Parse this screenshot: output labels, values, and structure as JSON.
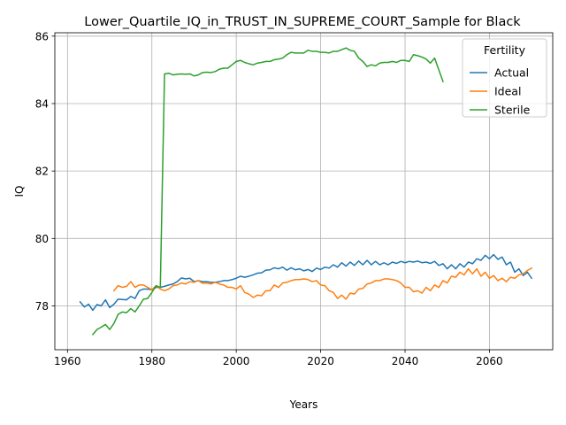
{
  "chart_data": {
    "type": "line",
    "title": "Lower_Quartile_IQ_in_TRUST_IN_SUPREME_COURT_Sample for Black",
    "xlabel": "Years",
    "ylabel": "IQ",
    "xlim": [
      1957,
      2075
    ],
    "ylim": [
      76.7,
      86.1
    ],
    "xticks": [
      1960,
      1980,
      2000,
      2020,
      2040,
      2060
    ],
    "yticks": [
      78,
      80,
      82,
      84,
      86
    ],
    "grid": true,
    "legend": {
      "title": "Fertility",
      "placement": "top-right"
    },
    "series": [
      {
        "name": "Actual",
        "color": "#1f77b4",
        "x": [
          1963,
          1964,
          1965,
          1966,
          1967,
          1968,
          1969,
          1970,
          1971,
          1972,
          1973,
          1974,
          1975,
          1976,
          1977,
          1978,
          1979,
          1980,
          1981,
          1982,
          1983,
          1984,
          1985,
          1986,
          1987,
          1988,
          1989,
          1990,
          1991,
          1992,
          1993,
          1994,
          1995,
          1996,
          1997,
          1998,
          1999,
          2000,
          2001,
          2002,
          2003,
          2004,
          2005,
          2006,
          2007,
          2008,
          2009,
          2010,
          2011,
          2012,
          2013,
          2014,
          2015,
          2016,
          2017,
          2018,
          2019,
          2020,
          2021,
          2022,
          2023,
          2024,
          2025,
          2026,
          2027,
          2028,
          2029,
          2030,
          2031,
          2032,
          2033,
          2034,
          2035,
          2036,
          2037,
          2038,
          2039,
          2040,
          2041,
          2042,
          2043,
          2044,
          2045,
          2046,
          2047,
          2048,
          2049,
          2050,
          2051,
          2052,
          2053,
          2054,
          2055,
          2056,
          2057,
          2058,
          2059,
          2060,
          2061,
          2062,
          2063,
          2064,
          2065,
          2066,
          2067,
          2068,
          2069,
          2070
        ],
        "values": [
          78.12,
          77.97,
          78.05,
          77.87,
          78.04,
          78.0,
          78.18,
          77.95,
          78.05,
          78.2,
          78.19,
          78.18,
          78.28,
          78.22,
          78.45,
          78.5,
          78.5,
          78.48,
          78.55,
          78.55,
          78.58,
          78.62,
          78.65,
          78.72,
          78.83,
          78.8,
          78.82,
          78.72,
          78.75,
          78.72,
          78.72,
          78.7,
          78.7,
          78.72,
          78.75,
          78.75,
          78.78,
          78.82,
          78.88,
          78.85,
          78.88,
          78.92,
          78.97,
          78.98,
          79.06,
          79.07,
          79.13,
          79.1,
          79.15,
          79.06,
          79.13,
          79.07,
          79.1,
          79.04,
          79.08,
          79.02,
          79.12,
          79.08,
          79.15,
          79.12,
          79.22,
          79.15,
          79.28,
          79.18,
          79.3,
          79.2,
          79.33,
          79.22,
          79.35,
          79.22,
          79.32,
          79.22,
          79.28,
          79.22,
          79.3,
          79.26,
          79.32,
          79.28,
          79.32,
          79.3,
          79.33,
          79.28,
          79.3,
          79.26,
          79.32,
          79.2,
          79.25,
          79.1,
          79.22,
          79.1,
          79.25,
          79.15,
          79.3,
          79.25,
          79.4,
          79.35,
          79.5,
          79.4,
          79.52,
          79.38,
          79.45,
          79.22,
          79.3,
          79.0,
          79.1,
          78.9,
          79.0,
          78.82
        ]
      },
      {
        "name": "Ideal",
        "color": "#ff7f0e",
        "x": [
          1971,
          1972,
          1973,
          1974,
          1975,
          1976,
          1977,
          1978,
          1979,
          1980,
          1981,
          1982,
          1983,
          1984,
          1985,
          1986,
          1987,
          1988,
          1989,
          1990,
          1991,
          1992,
          1993,
          1994,
          1995,
          1996,
          1997,
          1998,
          1999,
          2000,
          2001,
          2002,
          2003,
          2004,
          2005,
          2006,
          2007,
          2008,
          2009,
          2010,
          2011,
          2012,
          2013,
          2014,
          2015,
          2016,
          2017,
          2018,
          2019,
          2020,
          2021,
          2022,
          2023,
          2024,
          2025,
          2026,
          2027,
          2028,
          2029,
          2030,
          2031,
          2032,
          2033,
          2034,
          2035,
          2036,
          2037,
          2038,
          2039,
          2040,
          2041,
          2042,
          2043,
          2044,
          2045,
          2046,
          2047,
          2048,
          2049,
          2050,
          2051,
          2052,
          2053,
          2054,
          2055,
          2056,
          2057,
          2058,
          2059,
          2060,
          2061,
          2062,
          2063,
          2064,
          2065,
          2066,
          2067,
          2068,
          2069,
          2070
        ],
        "values": [
          78.45,
          78.6,
          78.55,
          78.58,
          78.72,
          78.55,
          78.62,
          78.62,
          78.55,
          78.48,
          78.6,
          78.5,
          78.45,
          78.5,
          78.6,
          78.62,
          78.68,
          78.65,
          78.72,
          78.7,
          78.75,
          78.67,
          78.68,
          78.65,
          78.7,
          78.65,
          78.62,
          78.55,
          78.55,
          78.5,
          78.6,
          78.4,
          78.35,
          78.25,
          78.32,
          78.3,
          78.45,
          78.45,
          78.62,
          78.55,
          78.68,
          78.7,
          78.75,
          78.78,
          78.78,
          78.8,
          78.78,
          78.72,
          78.75,
          78.62,
          78.6,
          78.45,
          78.4,
          78.22,
          78.32,
          78.2,
          78.38,
          78.35,
          78.5,
          78.52,
          78.65,
          78.68,
          78.75,
          78.75,
          78.8,
          78.8,
          78.78,
          78.75,
          78.68,
          78.55,
          78.55,
          78.42,
          78.45,
          78.38,
          78.55,
          78.45,
          78.62,
          78.55,
          78.75,
          78.68,
          78.88,
          78.85,
          79.0,
          78.92,
          79.1,
          78.95,
          79.1,
          78.88,
          79.0,
          78.82,
          78.9,
          78.75,
          78.82,
          78.72,
          78.85,
          78.82,
          78.92,
          78.95,
          79.05,
          79.12
        ]
      },
      {
        "name": "Sterile",
        "color": "#2ca02c",
        "x": [
          1966,
          1967,
          1968,
          1969,
          1970,
          1971,
          1972,
          1973,
          1974,
          1975,
          1976,
          1977,
          1978,
          1979,
          1980,
          1981,
          1982,
          1983,
          1984,
          1985,
          1986,
          1987,
          1988,
          1989,
          1990,
          1991,
          1992,
          1993,
          1994,
          1995,
          1996,
          1997,
          1998,
          1999,
          2000,
          2001,
          2002,
          2003,
          2004,
          2005,
          2006,
          2007,
          2008,
          2009,
          2010,
          2011,
          2012,
          2013,
          2014,
          2015,
          2016,
          2017,
          2018,
          2019,
          2020,
          2021,
          2022,
          2023,
          2024,
          2025,
          2026,
          2027,
          2028,
          2029,
          2030,
          2031,
          2032,
          2033,
          2034,
          2035,
          2036,
          2037,
          2038,
          2039,
          2040,
          2041,
          2042,
          2043,
          2044,
          2045,
          2046,
          2047,
          2048,
          2049
        ],
        "values": [
          77.15,
          77.3,
          77.37,
          77.45,
          77.3,
          77.48,
          77.75,
          77.82,
          77.8,
          77.92,
          77.82,
          78.0,
          78.2,
          78.22,
          78.4,
          78.6,
          78.55,
          84.88,
          84.9,
          84.85,
          84.87,
          84.88,
          84.87,
          84.88,
          84.82,
          84.85,
          84.92,
          84.93,
          84.92,
          84.95,
          85.02,
          85.05,
          85.05,
          85.15,
          85.25,
          85.28,
          85.22,
          85.18,
          85.15,
          85.2,
          85.22,
          85.25,
          85.25,
          85.3,
          85.32,
          85.35,
          85.45,
          85.52,
          85.5,
          85.5,
          85.5,
          85.58,
          85.55,
          85.55,
          85.52,
          85.52,
          85.5,
          85.55,
          85.55,
          85.6,
          85.65,
          85.58,
          85.55,
          85.35,
          85.25,
          85.1,
          85.15,
          85.12,
          85.2,
          85.22,
          85.22,
          85.25,
          85.22,
          85.28,
          85.28,
          85.25,
          85.45,
          85.42,
          85.38,
          85.32,
          85.2,
          85.35,
          85.0,
          84.65
        ]
      }
    ]
  }
}
